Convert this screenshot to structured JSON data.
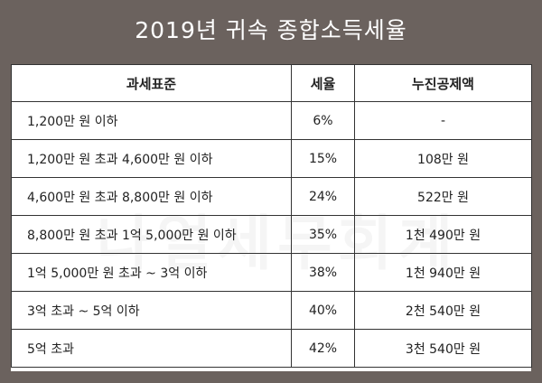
{
  "title": "2019년 귀속 종합소득세율",
  "watermark": "나얼세무회계",
  "table": {
    "headers": [
      "과세표준",
      "세율",
      "누진공제액"
    ],
    "rows": [
      {
        "bracket": "1,200만 원 이하",
        "rate": "6%",
        "deduction": "-"
      },
      {
        "bracket": "1,200만 원 초과 4,600만 원 이하",
        "rate": "15%",
        "deduction": "108만 원"
      },
      {
        "bracket": "4,600만 원 초과 8,800만 원 이하",
        "rate": "24%",
        "deduction": "522만 원"
      },
      {
        "bracket": "8,800만 원 초과 1억 5,000만 원 이하",
        "rate": "35%",
        "deduction": "1천 490만 원"
      },
      {
        "bracket": "1억 5,000만 원 초과 ~ 3억 이하",
        "rate": "38%",
        "deduction": "1천 940만 원"
      },
      {
        "bracket": "3억 초과 ~ 5억 이하",
        "rate": "40%",
        "deduction": "2천 540만 원"
      },
      {
        "bracket": "5억 초과",
        "rate": "42%",
        "deduction": "3천 540만 원"
      }
    ]
  }
}
